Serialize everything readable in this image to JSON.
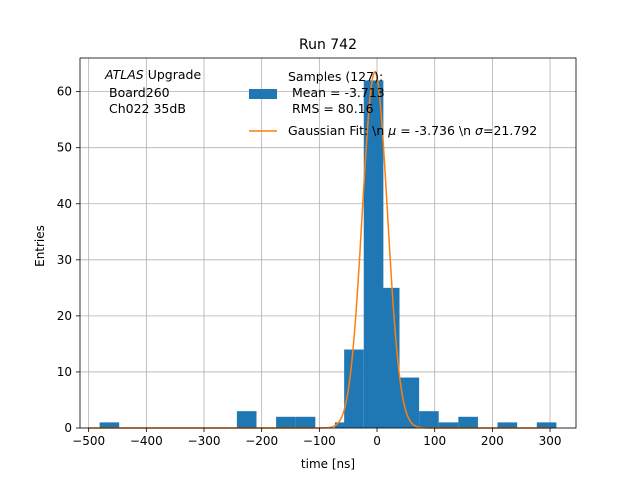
{
  "chart_data": {
    "type": "bar",
    "title": "Run 742",
    "xlabel": "time [ns]",
    "ylabel": "Entries",
    "xlim": [
      -515,
      345
    ],
    "ylim": [
      0,
      66
    ],
    "xticks": [
      -500,
      -400,
      -300,
      -200,
      -100,
      0,
      100,
      200,
      300
    ],
    "xtick_labels": [
      "−500",
      "−400",
      "−300",
      "−200",
      "−100",
      "0",
      "100",
      "200",
      "300"
    ],
    "yticks": [
      0,
      10,
      20,
      30,
      40,
      50,
      60
    ],
    "ytick_labels": [
      "0",
      "10",
      "20",
      "30",
      "40",
      "50",
      "60"
    ],
    "grid": true,
    "bin_width": 34,
    "histogram": [
      {
        "x0": -481,
        "count": 1
      },
      {
        "x0": -447,
        "count": 0
      },
      {
        "x0": -413,
        "count": 0
      },
      {
        "x0": -379,
        "count": 0
      },
      {
        "x0": -345,
        "count": 0
      },
      {
        "x0": -311,
        "count": 0
      },
      {
        "x0": -277,
        "count": 0
      },
      {
        "x0": -243,
        "count": 3
      },
      {
        "x0": -209,
        "count": 0
      },
      {
        "x0": -175,
        "count": 2
      },
      {
        "x0": -141,
        "count": 2
      },
      {
        "x0": -107,
        "count": 0
      },
      {
        "x0": -73,
        "count": 1
      },
      {
        "x0": -57,
        "count": 14
      },
      {
        "x0": -23,
        "count": 62
      },
      {
        "x0": 5,
        "count": 25
      },
      {
        "x0": 39,
        "count": 9
      },
      {
        "x0": 73,
        "count": 3
      },
      {
        "x0": 107,
        "count": 1
      },
      {
        "x0": 141,
        "count": 2
      },
      {
        "x0": 175,
        "count": 0
      },
      {
        "x0": 209,
        "count": 1
      },
      {
        "x0": 243,
        "count": 0
      },
      {
        "x0": 277,
        "count": 1
      }
    ],
    "gaussian_fit": {
      "mu": -3.736,
      "sigma": 21.792,
      "amplitude": 63.5
    },
    "annotation": {
      "line1_italic": "ATLAS",
      "line1_rest": " Upgrade",
      "line2": "Board260",
      "line3": "Ch022 35dB"
    },
    "legend": {
      "placement": "top-right",
      "hist_label_lines": [
        "Samples (127):",
        " Mean = -3.713",
        " RMS = 80.16"
      ],
      "fit_label_pre": "Gaussian Fit: \\n ",
      "fit_label_mu_sym": "μ",
      "fit_label_mid": " = -3.736 \\n ",
      "fit_label_sigma_sym": "σ",
      "fit_label_post": "=21.792"
    },
    "colors": {
      "hist": "#1f77b4",
      "fit": "#ff7f0e",
      "grid": "#b0b0b0",
      "axes": "#000000"
    }
  }
}
